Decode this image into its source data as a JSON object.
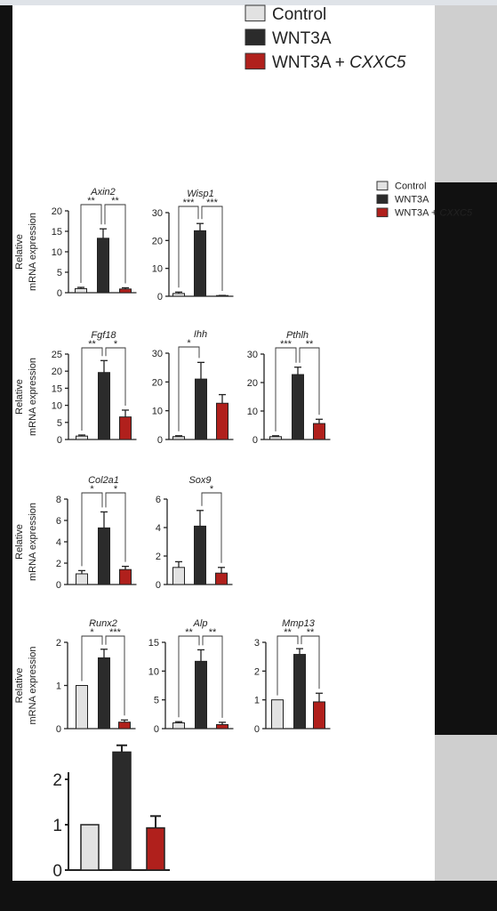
{
  "legend_large": {
    "items": [
      {
        "label": "Control",
        "color": "#e2e2e2",
        "italic_suffix": ""
      },
      {
        "label": "WNT3A",
        "color": "#2b2b2b",
        "italic_suffix": ""
      },
      {
        "label": "WNT3A + ",
        "color": "#b0201c",
        "italic_suffix": "CXXC5"
      }
    ]
  },
  "legend_small": {
    "items": [
      {
        "label": "Control",
        "color": "#e2e2e2",
        "italic_suffix": ""
      },
      {
        "label": "WNT3A",
        "color": "#2b2b2b",
        "italic_suffix": ""
      },
      {
        "label": "WNT3A + ",
        "color": "#b0201c",
        "italic_suffix": "CXXC5"
      }
    ]
  },
  "ylabel_line1": "Relative",
  "ylabel_line2": "mRNA expression",
  "series_colors": [
    "#e2e2e2",
    "#2b2b2b",
    "#b0201c"
  ],
  "chart_data": [
    {
      "type": "bar",
      "title": "Axin2",
      "categories": [
        "Control",
        "WNT3A",
        "WNT3A + CXXC5"
      ],
      "values": [
        1,
        13.3,
        0.9
      ],
      "errors": [
        0.3,
        2.3,
        0.3
      ],
      "ylim": [
        0,
        20
      ],
      "yticks": [
        0,
        5,
        10,
        15,
        20
      ],
      "significance": [
        "**",
        "**"
      ]
    },
    {
      "type": "bar",
      "title": "Wisp1",
      "categories": [
        "Control",
        "WNT3A",
        "WNT3A + CXXC5"
      ],
      "values": [
        1,
        23.5,
        0.2
      ],
      "errors": [
        0.5,
        2.6,
        0.1
      ],
      "ylim": [
        0,
        30
      ],
      "yticks": [
        0,
        10,
        20,
        30
      ],
      "significance": [
        "***",
        "***"
      ]
    },
    {
      "type": "bar",
      "title": "Fgf18",
      "categories": [
        "Control",
        "WNT3A",
        "WNT3A + CXXC5"
      ],
      "values": [
        1,
        19.6,
        6.6
      ],
      "errors": [
        0.3,
        3.5,
        2.0
      ],
      "ylim": [
        0,
        25
      ],
      "yticks": [
        0,
        5,
        10,
        15,
        20,
        25
      ],
      "significance": [
        "**",
        "*"
      ]
    },
    {
      "type": "bar",
      "title": "Ihh",
      "categories": [
        "Control",
        "WNT3A",
        "WNT3A + CXXC5"
      ],
      "values": [
        1,
        21,
        12.6
      ],
      "errors": [
        0.3,
        5.8,
        3.0
      ],
      "ylim": [
        0,
        30
      ],
      "yticks": [
        0,
        10,
        20,
        30
      ],
      "significance": [
        "*",
        ""
      ]
    },
    {
      "type": "bar",
      "title": "Pthlh",
      "categories": [
        "Control",
        "WNT3A",
        "WNT3A + CXXC5"
      ],
      "values": [
        1,
        22.8,
        5.6
      ],
      "errors": [
        0.3,
        2.6,
        1.5
      ],
      "ylim": [
        0,
        30
      ],
      "yticks": [
        0,
        10,
        20,
        30
      ],
      "significance": [
        "***",
        "**"
      ]
    },
    {
      "type": "bar",
      "title": "Col2a1",
      "categories": [
        "Control",
        "WNT3A",
        "WNT3A + CXXC5"
      ],
      "values": [
        1,
        5.3,
        1.4
      ],
      "errors": [
        0.3,
        1.5,
        0.3
      ],
      "ylim": [
        0,
        8
      ],
      "yticks": [
        0,
        2,
        4,
        6,
        8
      ],
      "significance": [
        "*",
        "*"
      ]
    },
    {
      "type": "bar",
      "title": "Sox9",
      "categories": [
        "Control",
        "WNT3A",
        "WNT3A + CXXC5"
      ],
      "values": [
        1.2,
        4.1,
        0.8
      ],
      "errors": [
        0.4,
        1.1,
        0.4
      ],
      "ylim": [
        0,
        6
      ],
      "yticks": [
        0,
        2,
        4,
        6
      ],
      "significance": [
        "",
        "*"
      ]
    },
    {
      "type": "bar",
      "title": "Runx2",
      "categories": [
        "Control",
        "WNT3A",
        "WNT3A + CXXC5"
      ],
      "values": [
        1,
        1.64,
        0.15
      ],
      "errors": [
        0,
        0.2,
        0.05
      ],
      "ylim": [
        0,
        2
      ],
      "yticks": [
        0,
        1,
        2
      ],
      "significance": [
        "*",
        "***"
      ]
    },
    {
      "type": "bar",
      "title": "Alp",
      "categories": [
        "Control",
        "WNT3A",
        "WNT3A + CXXC5"
      ],
      "values": [
        1,
        11.7,
        0.7
      ],
      "errors": [
        0.2,
        2.0,
        0.4
      ],
      "ylim": [
        0,
        15
      ],
      "yticks": [
        0,
        5,
        10,
        15
      ],
      "significance": [
        "**",
        "**"
      ]
    },
    {
      "type": "bar",
      "title": "Mmp13",
      "categories": [
        "Control",
        "WNT3A",
        "WNT3A + CXXC5"
      ],
      "values": [
        1,
        2.58,
        0.93
      ],
      "errors": [
        0,
        0.2,
        0.3
      ],
      "ylim": [
        0,
        3
      ],
      "yticks": [
        0,
        1,
        2,
        3
      ],
      "significance": [
        "**",
        "**"
      ]
    },
    {
      "type": "bar",
      "title": "",
      "categories": [
        "Control",
        "WNT3A",
        "WNT3A + CXXC5"
      ],
      "values": [
        1,
        2.6,
        0.93
      ],
      "errors": [
        0,
        0.15,
        0.26
      ],
      "ylim": [
        0,
        3
      ],
      "yticks": [
        0,
        1,
        2
      ],
      "significance": [
        "",
        ""
      ]
    }
  ]
}
